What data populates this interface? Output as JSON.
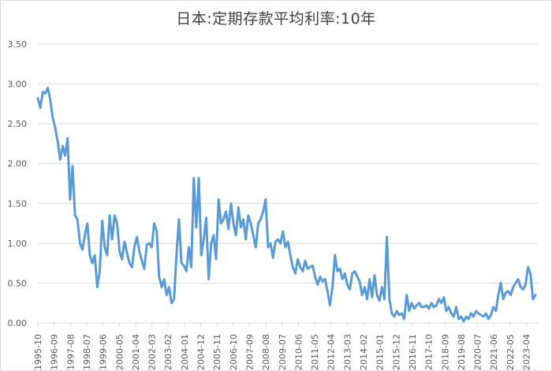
{
  "chart_data": {
    "type": "line",
    "title": "日本:定期存款平均利率:10年",
    "xlabel": "",
    "ylabel": "",
    "ylim": [
      0,
      3.5
    ],
    "yticks": [
      "0.00",
      "0.50",
      "1.00",
      "1.50",
      "2.00",
      "2.50",
      "3.00",
      "3.50"
    ],
    "grid": true,
    "legend": "none",
    "line_color": "#5b9bd5",
    "categories": [
      "1995-10",
      "1996-09",
      "1997-08",
      "1998-07",
      "1999-06",
      "2000-05",
      "2001-04",
      "2002-03",
      "2003-02",
      "2004-01",
      "2004-12",
      "2005-11",
      "2006-10",
      "2007-09",
      "2008-08",
      "2009-07",
      "2010-06",
      "2011-05",
      "2012-04",
      "2013-03",
      "2014-02",
      "2015-01",
      "2015-12",
      "2016-11",
      "2017-10",
      "2018-09",
      "2019-08",
      "2020-07",
      "2021-06",
      "2022-05",
      "2023-04"
    ],
    "series": [
      {
        "name": "日本:定期存款平均利率:10年",
        "values": [
          2.82,
          2.7,
          2.9,
          2.88,
          2.95,
          2.8,
          2.58,
          2.45,
          2.28,
          2.05,
          2.22,
          2.1,
          2.32,
          1.55,
          1.97,
          1.35,
          1.3,
          1.0,
          0.92,
          1.1,
          1.25,
          0.85,
          0.75,
          0.85,
          0.45,
          0.65,
          1.28,
          0.95,
          0.85,
          1.35,
          1.05,
          1.35,
          1.25,
          0.9,
          0.8,
          1.02,
          0.88,
          0.75,
          0.7,
          0.95,
          1.08,
          0.9,
          0.78,
          0.68,
          0.98,
          1.0,
          0.95,
          1.25,
          1.15,
          0.58,
          0.45,
          0.55,
          0.35,
          0.45,
          0.25,
          0.3,
          0.85,
          1.3,
          0.75,
          0.72,
          0.65,
          0.95,
          0.7,
          1.82,
          1.2,
          1.82,
          0.85,
          1.05,
          1.32,
          0.55,
          1.0,
          1.1,
          0.8,
          1.55,
          1.25,
          1.3,
          1.4,
          1.18,
          1.5,
          1.25,
          1.1,
          1.45,
          1.2,
          1.3,
          1.05,
          1.35,
          1.25,
          1.1,
          0.95,
          1.25,
          1.3,
          1.4,
          1.55,
          0.95,
          1.0,
          0.82,
          1.02,
          1.05,
          1.0,
          1.15,
          0.95,
          1.02,
          0.85,
          0.7,
          0.62,
          0.8,
          0.7,
          0.65,
          0.78,
          0.68,
          0.7,
          0.72,
          0.58,
          0.48,
          0.58,
          0.52,
          0.55,
          0.4,
          0.22,
          0.45,
          0.85,
          0.65,
          0.68,
          0.55,
          0.62,
          0.48,
          0.42,
          0.62,
          0.65,
          0.58,
          0.52,
          0.35,
          0.45,
          0.3,
          0.55,
          0.32,
          0.6,
          0.35,
          0.28,
          0.45,
          0.3,
          1.08,
          0.3,
          0.12,
          0.08,
          0.15,
          0.1,
          0.12,
          0.05,
          0.35,
          0.15,
          0.25,
          0.18,
          0.22,
          0.25,
          0.2,
          0.2,
          0.22,
          0.18,
          0.25,
          0.2,
          0.22,
          0.3,
          0.25,
          0.32,
          0.15,
          0.2,
          0.12,
          0.08,
          0.2,
          0.05,
          0.08,
          0.02,
          0.08,
          0.05,
          0.12,
          0.08,
          0.15,
          0.12,
          0.1,
          0.08,
          0.12,
          0.05,
          0.1,
          0.2,
          0.15,
          0.35,
          0.5,
          0.3,
          0.38,
          0.4,
          0.35,
          0.45,
          0.5,
          0.55,
          0.45,
          0.42,
          0.48,
          0.7,
          0.62,
          0.3,
          0.35
        ]
      }
    ]
  }
}
